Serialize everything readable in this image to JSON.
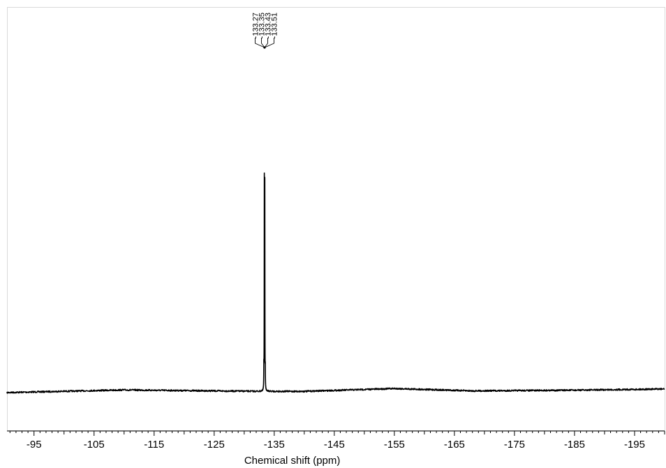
{
  "chart_data": {
    "type": "line",
    "xlabel": "Chemical shift (ppm)",
    "ylabel": "",
    "title": "",
    "x_reversed": true,
    "xlim": [
      -90.5,
      -200
    ],
    "x_ticks": [
      -95,
      -105,
      -115,
      -125,
      -135,
      -145,
      -155,
      -165,
      -175,
      -185,
      -195
    ],
    "x_minor_step": 1,
    "grid": false,
    "legend": "none",
    "peak_labels": [
      "-133.27",
      "-133.35",
      "-133.43",
      "-133.51"
    ],
    "peaks": [
      {
        "x": -133.27,
        "intensity": 0.08
      },
      {
        "x": -133.35,
        "intensity": 0.87
      },
      {
        "x": -133.43,
        "intensity": 0.86
      },
      {
        "x": -133.51,
        "intensity": 0.07
      }
    ],
    "baseline": {
      "x": [
        -90.5,
        -110,
        -125,
        -133,
        -140,
        -155,
        -168,
        -185,
        -200
      ],
      "y": [
        0.0,
        0.011,
        0.007,
        0.005,
        0.005,
        0.017,
        0.007,
        0.01,
        0.015
      ]
    },
    "colors": {
      "trace": "#000000",
      "axis": "#000000",
      "frame": "#d9d9d9"
    }
  }
}
